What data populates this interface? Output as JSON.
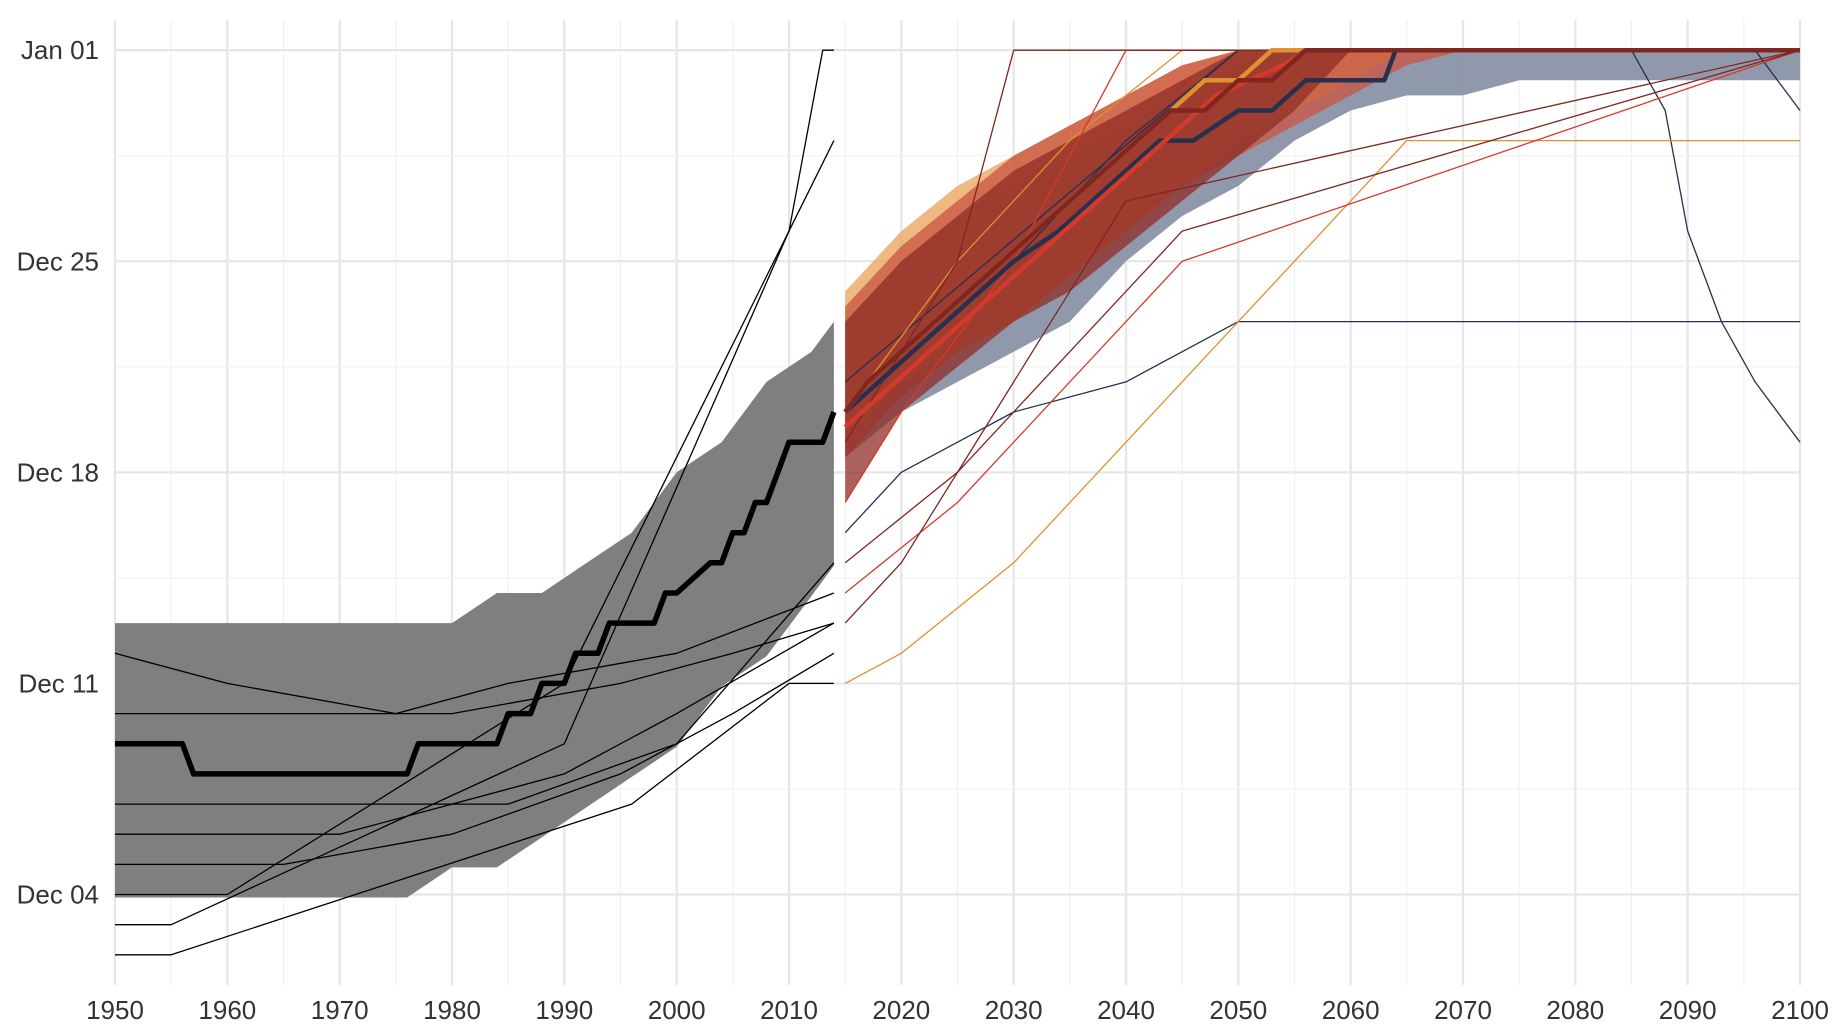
{
  "chart_data": {
    "type": "line",
    "title": "",
    "xlabel": "",
    "ylabel": "",
    "xlim": [
      1950,
      2100
    ],
    "y_unit": "days since Dec 01",
    "ylim": [
      0,
      32
    ],
    "x_ticks": [
      1950,
      1960,
      1970,
      1980,
      1990,
      2000,
      2010,
      2020,
      2030,
      2040,
      2050,
      2060,
      2070,
      2080,
      2090,
      2100
    ],
    "y_ticks": [
      {
        "value": 3,
        "label": "Dec 04"
      },
      {
        "value": 10,
        "label": "Dec 11"
      },
      {
        "value": 17,
        "label": "Dec 18"
      },
      {
        "value": 24,
        "label": "Dec 25"
      },
      {
        "value": 31,
        "label": "Jan 01"
      }
    ],
    "grid": true,
    "legend": "none",
    "colors": {
      "historical_band": "#7f7f7f",
      "historical_line": "#000000",
      "ssp_blue": "#8a93a6",
      "ssp_blue_line": "#26304f",
      "ssp_orange": "#e8a25a",
      "ssp_orange_line": "#e0902f",
      "ssp_red": "#c95442",
      "ssp_red_line": "#d43a2c",
      "ssp_darkred": "#8f2e25",
      "ssp_darkred_line": "#7f2621"
    },
    "series": [
      {
        "group": "historical",
        "kind": "band",
        "x": [
          1950,
          1956,
          1976,
          1980,
          1984,
          1988,
          1992,
          1996,
          2000,
          2004,
          2008,
          2012,
          2014
        ],
        "lower": [
          2.9,
          2.9,
          2.9,
          3.9,
          3.9,
          4.9,
          5.9,
          6.9,
          7.9,
          9.9,
          10.9,
          12.9,
          13.9
        ],
        "upper": [
          12.0,
          12.0,
          12.0,
          12.0,
          13.0,
          13.0,
          14.0,
          15.0,
          17.0,
          18.0,
          20.0,
          21.0,
          22.0
        ]
      },
      {
        "group": "historical",
        "kind": "median",
        "x": [
          1950,
          1956,
          1957,
          1976,
          1977,
          1984,
          1985,
          1987,
          1988,
          1990,
          1991,
          1993,
          1994,
          1995,
          1996,
          1998,
          1999,
          2000,
          2003,
          2004,
          2005,
          2006,
          2007,
          2008,
          2009,
          2010,
          2013,
          2014
        ],
        "y": [
          8.0,
          8.0,
          7.0,
          7.0,
          8.0,
          8.0,
          9.0,
          9.0,
          10.0,
          10.0,
          11.0,
          11.0,
          12.0,
          12.0,
          12.0,
          12.0,
          13.0,
          13.0,
          14.0,
          14.0,
          15.0,
          15.0,
          16.0,
          16.0,
          17.0,
          18.0,
          18.0,
          19.0
        ]
      },
      {
        "group": "ssp_blue",
        "kind": "band",
        "x": [
          2015,
          2020,
          2025,
          2030,
          2035,
          2040,
          2045,
          2050,
          2055,
          2060,
          2065,
          2070,
          2075,
          2080,
          2085,
          2090,
          2095,
          2100
        ],
        "lower": [
          17.5,
          19.0,
          20.0,
          21.0,
          22.0,
          24.0,
          25.5,
          26.5,
          28.0,
          29.0,
          29.5,
          29.5,
          30.0,
          30.0,
          30.0,
          30.0,
          30.0,
          30.0
        ],
        "upper": [
          22.0,
          24.0,
          25.5,
          26.5,
          27.5,
          28.5,
          29.5,
          30.5,
          31.0,
          31.0,
          31.0,
          31.0,
          31.0,
          31.0,
          31.0,
          31.0,
          31.0,
          31.0
        ]
      },
      {
        "group": "ssp_orange",
        "kind": "band",
        "x": [
          2015,
          2020,
          2025,
          2030,
          2035,
          2040,
          2045,
          2050,
          2055,
          2060,
          2065,
          2070,
          2100
        ],
        "lower": [
          18.0,
          20.0,
          21.0,
          22.0,
          23.5,
          25.0,
          26.5,
          28.0,
          29.0,
          30.0,
          31.0,
          31.0,
          31.0
        ],
        "upper": [
          23.0,
          25.0,
          26.5,
          27.5,
          28.5,
          29.5,
          30.5,
          31.0,
          31.0,
          31.0,
          31.0,
          31.0,
          31.0
        ]
      },
      {
        "group": "ssp_red",
        "kind": "band",
        "x": [
          2015,
          2020,
          2025,
          2030,
          2035,
          2040,
          2045,
          2050,
          2055,
          2060,
          2065,
          2070,
          2100
        ],
        "lower": [
          17.5,
          19.5,
          21.0,
          22.0,
          23.5,
          25.0,
          26.5,
          27.5,
          28.5,
          29.5,
          30.5,
          31.0,
          31.0
        ],
        "upper": [
          22.5,
          24.5,
          26.0,
          27.5,
          28.5,
          29.5,
          30.5,
          31.0,
          31.0,
          31.0,
          31.0,
          31.0,
          31.0
        ]
      },
      {
        "group": "ssp_darkred",
        "kind": "band",
        "x": [
          2015,
          2020,
          2025,
          2030,
          2035,
          2040,
          2045,
          2050,
          2055,
          2060,
          2100
        ],
        "lower": [
          16.0,
          19.0,
          20.5,
          22.0,
          23.0,
          24.5,
          26.0,
          27.5,
          29.0,
          31.0,
          31.0
        ],
        "upper": [
          22.0,
          24.0,
          25.5,
          27.0,
          28.0,
          29.0,
          30.0,
          31.0,
          31.0,
          31.0,
          31.0
        ]
      },
      {
        "group": "ssp_blue",
        "kind": "median",
        "x": [
          2015,
          2018,
          2021,
          2024,
          2027,
          2030,
          2034,
          2037,
          2040,
          2043,
          2046,
          2050,
          2053,
          2056,
          2060,
          2063,
          2064,
          2100
        ],
        "y": [
          19.0,
          20.0,
          21.0,
          22.0,
          23.0,
          24.0,
          25.0,
          26.0,
          27.0,
          28.0,
          28.0,
          29.0,
          29.0,
          30.0,
          30.0,
          30.0,
          31.0,
          31.0
        ]
      },
      {
        "group": "ssp_orange",
        "kind": "median",
        "x": [
          2015,
          2017,
          2020,
          2023,
          2026,
          2029,
          2032,
          2035,
          2038,
          2041,
          2044,
          2047,
          2050,
          2053,
          2056,
          2100
        ],
        "y": [
          19.0,
          20.0,
          21.0,
          22.0,
          23.0,
          24.0,
          25.0,
          26.0,
          27.0,
          28.0,
          29.0,
          30.0,
          30.0,
          31.0,
          31.0,
          31.0
        ]
      },
      {
        "group": "ssp_red",
        "kind": "median",
        "x": [
          2015,
          2018,
          2021,
          2024,
          2027,
          2030,
          2033,
          2036,
          2039,
          2042,
          2045,
          2048,
          2051,
          2054,
          2056,
          2100
        ],
        "y": [
          18.5,
          19.5,
          20.5,
          21.5,
          22.5,
          23.5,
          24.5,
          25.5,
          26.5,
          27.5,
          28.5,
          29.5,
          30.0,
          30.5,
          31.0,
          31.0
        ]
      },
      {
        "group": "ssp_darkred",
        "kind": "median",
        "x": [
          2015,
          2017,
          2020,
          2023,
          2026,
          2029,
          2032,
          2035,
          2038,
          2041,
          2044,
          2047,
          2050,
          2053,
          2056,
          2100
        ],
        "y": [
          19.0,
          20.0,
          21.0,
          22.0,
          23.0,
          24.0,
          25.0,
          26.0,
          27.0,
          28.0,
          29.0,
          29.0,
          30.0,
          30.0,
          31.0,
          31.0
        ]
      },
      {
        "group": "ssp_blue",
        "kind": "member",
        "x": [
          2015,
          2020,
          2025,
          2030,
          2040,
          2045,
          2050,
          2055,
          2100
        ],
        "y": [
          15.0,
          17.0,
          18.0,
          19.0,
          20.0,
          21.0,
          22.0,
          22.0,
          22.0
        ]
      },
      {
        "group": "ssp_blue",
        "kind": "member",
        "x": [
          2015,
          2030,
          2040,
          2050,
          2060,
          2070,
          2080,
          2085,
          2088,
          2090,
          2093,
          2096,
          2100
        ],
        "y": [
          19.0,
          24.0,
          28.0,
          31.0,
          31.0,
          31.0,
          31.0,
          31.0,
          29.0,
          25.0,
          22.0,
          20.0,
          18.0
        ]
      },
      {
        "group": "ssp_blue",
        "kind": "member",
        "x": [
          2015,
          2050,
          2090,
          2096,
          2098,
          2100
        ],
        "y": [
          20.0,
          31.0,
          31.0,
          31.0,
          30.0,
          29.0
        ]
      },
      {
        "group": "ssp_orange",
        "kind": "member",
        "x": [
          2015,
          2020,
          2030,
          2040,
          2050,
          2060,
          2065,
          2100
        ],
        "y": [
          10.0,
          11.0,
          14.0,
          18.0,
          22.0,
          26.0,
          28.0,
          28.0
        ]
      },
      {
        "group": "ssp_orange",
        "kind": "member",
        "x": [
          2015,
          2025,
          2035,
          2045,
          2055,
          2100
        ],
        "y": [
          19.0,
          24.0,
          28.0,
          31.0,
          31.0,
          31.0
        ]
      },
      {
        "group": "ssp_red",
        "kind": "member",
        "x": [
          2015,
          2025,
          2035,
          2045,
          2100
        ],
        "y": [
          13.0,
          16.0,
          20.0,
          24.0,
          31.0
        ]
      },
      {
        "group": "ssp_red",
        "kind": "member",
        "x": [
          2015,
          2020,
          2030,
          2040,
          2100
        ],
        "y": [
          16.0,
          19.0,
          24.0,
          31.0,
          31.0
        ]
      },
      {
        "group": "ssp_darkred",
        "kind": "member",
        "x": [
          2015,
          2025,
          2035,
          2045,
          2100
        ],
        "y": [
          14.0,
          17.0,
          21.0,
          25.0,
          31.0
        ]
      },
      {
        "group": "ssp_darkred",
        "kind": "member",
        "x": [
          2015,
          2020,
          2030,
          2040,
          2100
        ],
        "y": [
          12.0,
          14.0,
          20.0,
          26.0,
          31.0
        ]
      },
      {
        "group": "ssp_darkred",
        "kind": "member",
        "x": [
          2015,
          2025,
          2030,
          2100
        ],
        "y": [
          18.0,
          24.0,
          31.0,
          31.0
        ]
      },
      {
        "group": "historical",
        "kind": "member",
        "x": [
          1950,
          1955,
          1990,
          2010,
          2013,
          2014
        ],
        "y": [
          2.0,
          2.0,
          8.0,
          25.0,
          31.0,
          31.0
        ]
      },
      {
        "group": "historical",
        "kind": "member",
        "x": [
          1950,
          1960,
          1990,
          2010,
          2014
        ],
        "y": [
          3.0,
          3.0,
          10.0,
          25.0,
          28.0
        ]
      },
      {
        "group": "historical",
        "kind": "member",
        "x": [
          1950,
          1955,
          1996,
          2010,
          2014
        ],
        "y": [
          1.0,
          1.0,
          6.0,
          10.0,
          10.0
        ]
      },
      {
        "group": "historical",
        "kind": "member",
        "x": [
          1950,
          1970,
          1980,
          1990,
          2000,
          2014
        ],
        "y": [
          5.0,
          5.0,
          6.0,
          7.0,
          9.0,
          12.0
        ]
      },
      {
        "group": "historical",
        "kind": "member",
        "x": [
          1950,
          1960,
          1975,
          1985,
          2000,
          2014
        ],
        "y": [
          11.0,
          10.0,
          9.0,
          10.0,
          11.0,
          13.0
        ]
      },
      {
        "group": "historical",
        "kind": "member",
        "x": [
          1950,
          1965,
          1980,
          1995,
          2005,
          2014
        ],
        "y": [
          4.0,
          4.0,
          5.0,
          7.0,
          9.0,
          11.0
        ]
      },
      {
        "group": "historical",
        "kind": "member",
        "x": [
          1950,
          1960,
          1985,
          2000,
          2014
        ],
        "y": [
          6.0,
          6.0,
          6.0,
          8.0,
          14.0
        ]
      },
      {
        "group": "historical",
        "kind": "member",
        "x": [
          1950,
          1980,
          1995,
          2005,
          2014
        ],
        "y": [
          9.0,
          9.0,
          10.0,
          11.0,
          12.0
        ]
      }
    ]
  }
}
